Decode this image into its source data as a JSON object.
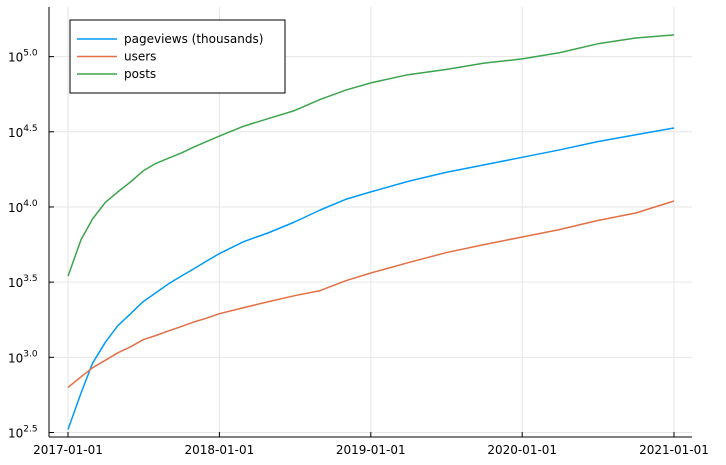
{
  "chart_data": {
    "type": "line",
    "title": "",
    "xlabel": "",
    "ylabel": "",
    "y_scale": "log10",
    "grid": true,
    "legend_position": "top-left",
    "x_ticks": [
      "2017-01-01",
      "2018-01-01",
      "2019-01-01",
      "2020-01-01",
      "2021-01-01"
    ],
    "y_ticks": [
      {
        "base": "10",
        "exp": "2.5",
        "value": 316.2
      },
      {
        "base": "10",
        "exp": "3.0",
        "value": 1000
      },
      {
        "base": "10",
        "exp": "3.5",
        "value": 3162.3
      },
      {
        "base": "10",
        "exp": "4.0",
        "value": 10000
      },
      {
        "base": "10",
        "exp": "4.5",
        "value": 31622.8
      },
      {
        "base": "10",
        "exp": "5.0",
        "value": 100000
      }
    ],
    "x": [
      "2017-01-01",
      "2017-02-01",
      "2017-03-01",
      "2017-04-01",
      "2017-05-01",
      "2017-06-01",
      "2017-07-01",
      "2017-08-01",
      "2017-09-01",
      "2017-10-01",
      "2017-11-01",
      "2017-12-01",
      "2018-01-01",
      "2018-03-01",
      "2018-05-01",
      "2018-07-01",
      "2018-09-01",
      "2018-11-01",
      "2019-01-01",
      "2019-04-01",
      "2019-07-01",
      "2019-10-01",
      "2020-01-01",
      "2020-04-01",
      "2020-07-01",
      "2020-10-01",
      "2021-01-01"
    ],
    "series": [
      {
        "name": "pageviews (thousands)",
        "color": "#009AFA",
        "values": [
          331,
          575,
          912,
          1259,
          1622,
          1950,
          2344,
          2692,
          3090,
          3467,
          3890,
          4365,
          4898,
          5888,
          6761,
          7943,
          9550,
          11220,
          12589,
          14791,
          16982,
          19055,
          21380,
          23988,
          27227,
          30200,
          33497
        ]
      },
      {
        "name": "users",
        "color": "#E26F46",
        "values": [
          631,
          741,
          851,
          955,
          1072,
          1175,
          1310,
          1396,
          1500,
          1600,
          1720,
          1820,
          1950,
          2140,
          2350,
          2570,
          2780,
          3230,
          3640,
          4260,
          4960,
          5620,
          6310,
          7080,
          8130,
          9120,
          10960
        ]
      },
      {
        "name": "posts",
        "color": "#3DA44D",
        "values": [
          3460,
          6030,
          8320,
          10720,
          12590,
          14680,
          17380,
          19500,
          21150,
          22800,
          25100,
          27200,
          29600,
          34500,
          38890,
          43740,
          51940,
          59760,
          66830,
          75860,
          82070,
          90600,
          96610,
          106400,
          121700,
          132900,
          139400
        ]
      }
    ]
  }
}
